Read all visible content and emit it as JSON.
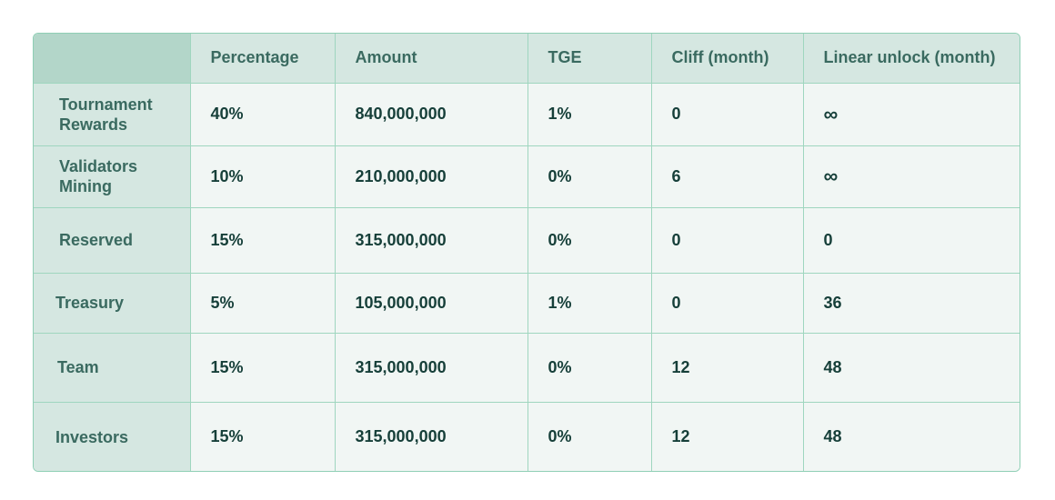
{
  "table": {
    "headers": [
      "",
      "Percentage",
      "Amount",
      "TGE",
      "Cliff (month)",
      "Linear unlock (month)"
    ],
    "rows": [
      {
        "label_line1": "Tournament",
        "label_line2": "Rewards",
        "percentage": "40%",
        "amount": "840,000,000",
        "tge": "1%",
        "cliff": "0",
        "linear_unlock": "∞"
      },
      {
        "label_line1": "Validators",
        "label_line2": "Mining",
        "percentage": "10%",
        "amount": "210,000,000",
        "tge": "0%",
        "cliff": "6",
        "linear_unlock": "∞"
      },
      {
        "label_line1": "Reserved",
        "label_line2": "",
        "percentage": "15%",
        "amount": "315,000,000",
        "tge": "0%",
        "cliff": "0",
        "linear_unlock": "0"
      },
      {
        "label_line1": "Treasury",
        "label_line2": "",
        "percentage": "5%",
        "amount": "105,000,000",
        "tge": "1%",
        "cliff": "0",
        "linear_unlock": "36"
      },
      {
        "label_line1": "Team",
        "label_line2": "",
        "percentage": "15%",
        "amount": "315,000,000",
        "tge": "0%",
        "cliff": "12",
        "linear_unlock": "48"
      },
      {
        "label_line1": "Investors",
        "label_line2": "",
        "percentage": "15%",
        "amount": "315,000,000",
        "tge": "0%",
        "cliff": "12",
        "linear_unlock": "48"
      }
    ]
  },
  "colors": {
    "border": "#9fd6bf",
    "header_bg": "#d5e7e1",
    "corner_bg": "#b3d6c9",
    "cell_bg": "#f1f6f4",
    "text": "#163f39"
  }
}
